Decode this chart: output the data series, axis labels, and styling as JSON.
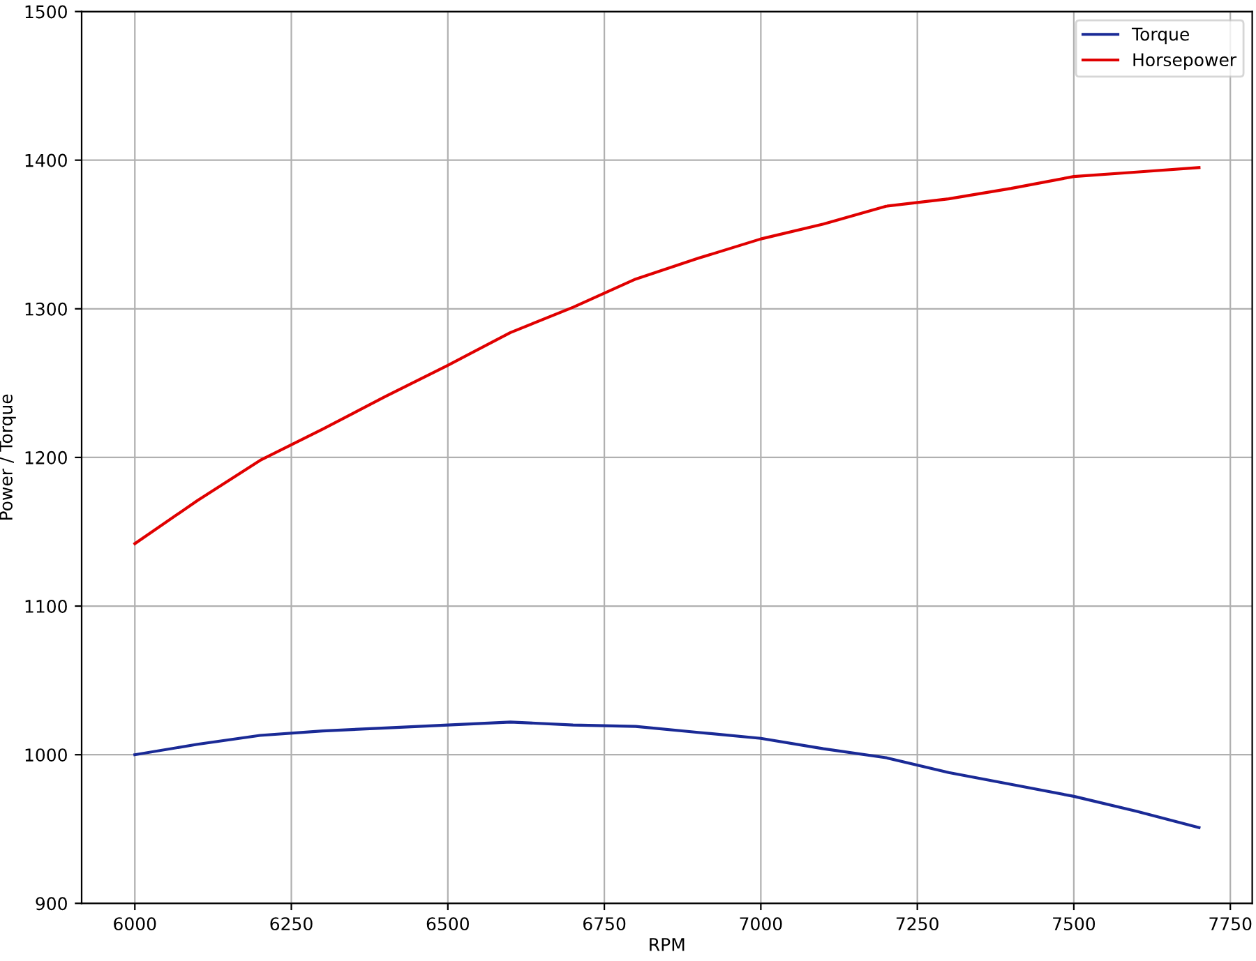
{
  "chart_data": {
    "type": "line",
    "xlabel": "RPM",
    "ylabel": "Power / Torque",
    "x": [
      6000,
      6100,
      6200,
      6300,
      6400,
      6500,
      6600,
      6700,
      6800,
      6900,
      7000,
      7100,
      7200,
      7300,
      7400,
      7500,
      7600,
      7700
    ],
    "series": [
      {
        "name": "Torque",
        "color": "#1a2a96",
        "values": [
          1000,
          1007,
          1013,
          1016,
          1018,
          1020,
          1022,
          1020,
          1019,
          1015,
          1011,
          1004,
          998,
          988,
          980,
          972,
          962,
          951
        ]
      },
      {
        "name": "Horsepower",
        "color": "#e00000",
        "values": [
          1142,
          1171,
          1198,
          1219,
          1241,
          1262,
          1284,
          1301,
          1320,
          1334,
          1347,
          1357,
          1369,
          1374,
          1381,
          1389,
          1392,
          1395
        ]
      }
    ],
    "xlim": [
      5915,
      7785
    ],
    "xticks": [
      6000,
      6250,
      6500,
      6750,
      7000,
      7250,
      7500,
      7750
    ],
    "ylim": [
      900,
      1500
    ],
    "yticks": [
      900,
      1000,
      1100,
      1200,
      1300,
      1400,
      1500
    ],
    "grid": true,
    "legend": "top right"
  }
}
